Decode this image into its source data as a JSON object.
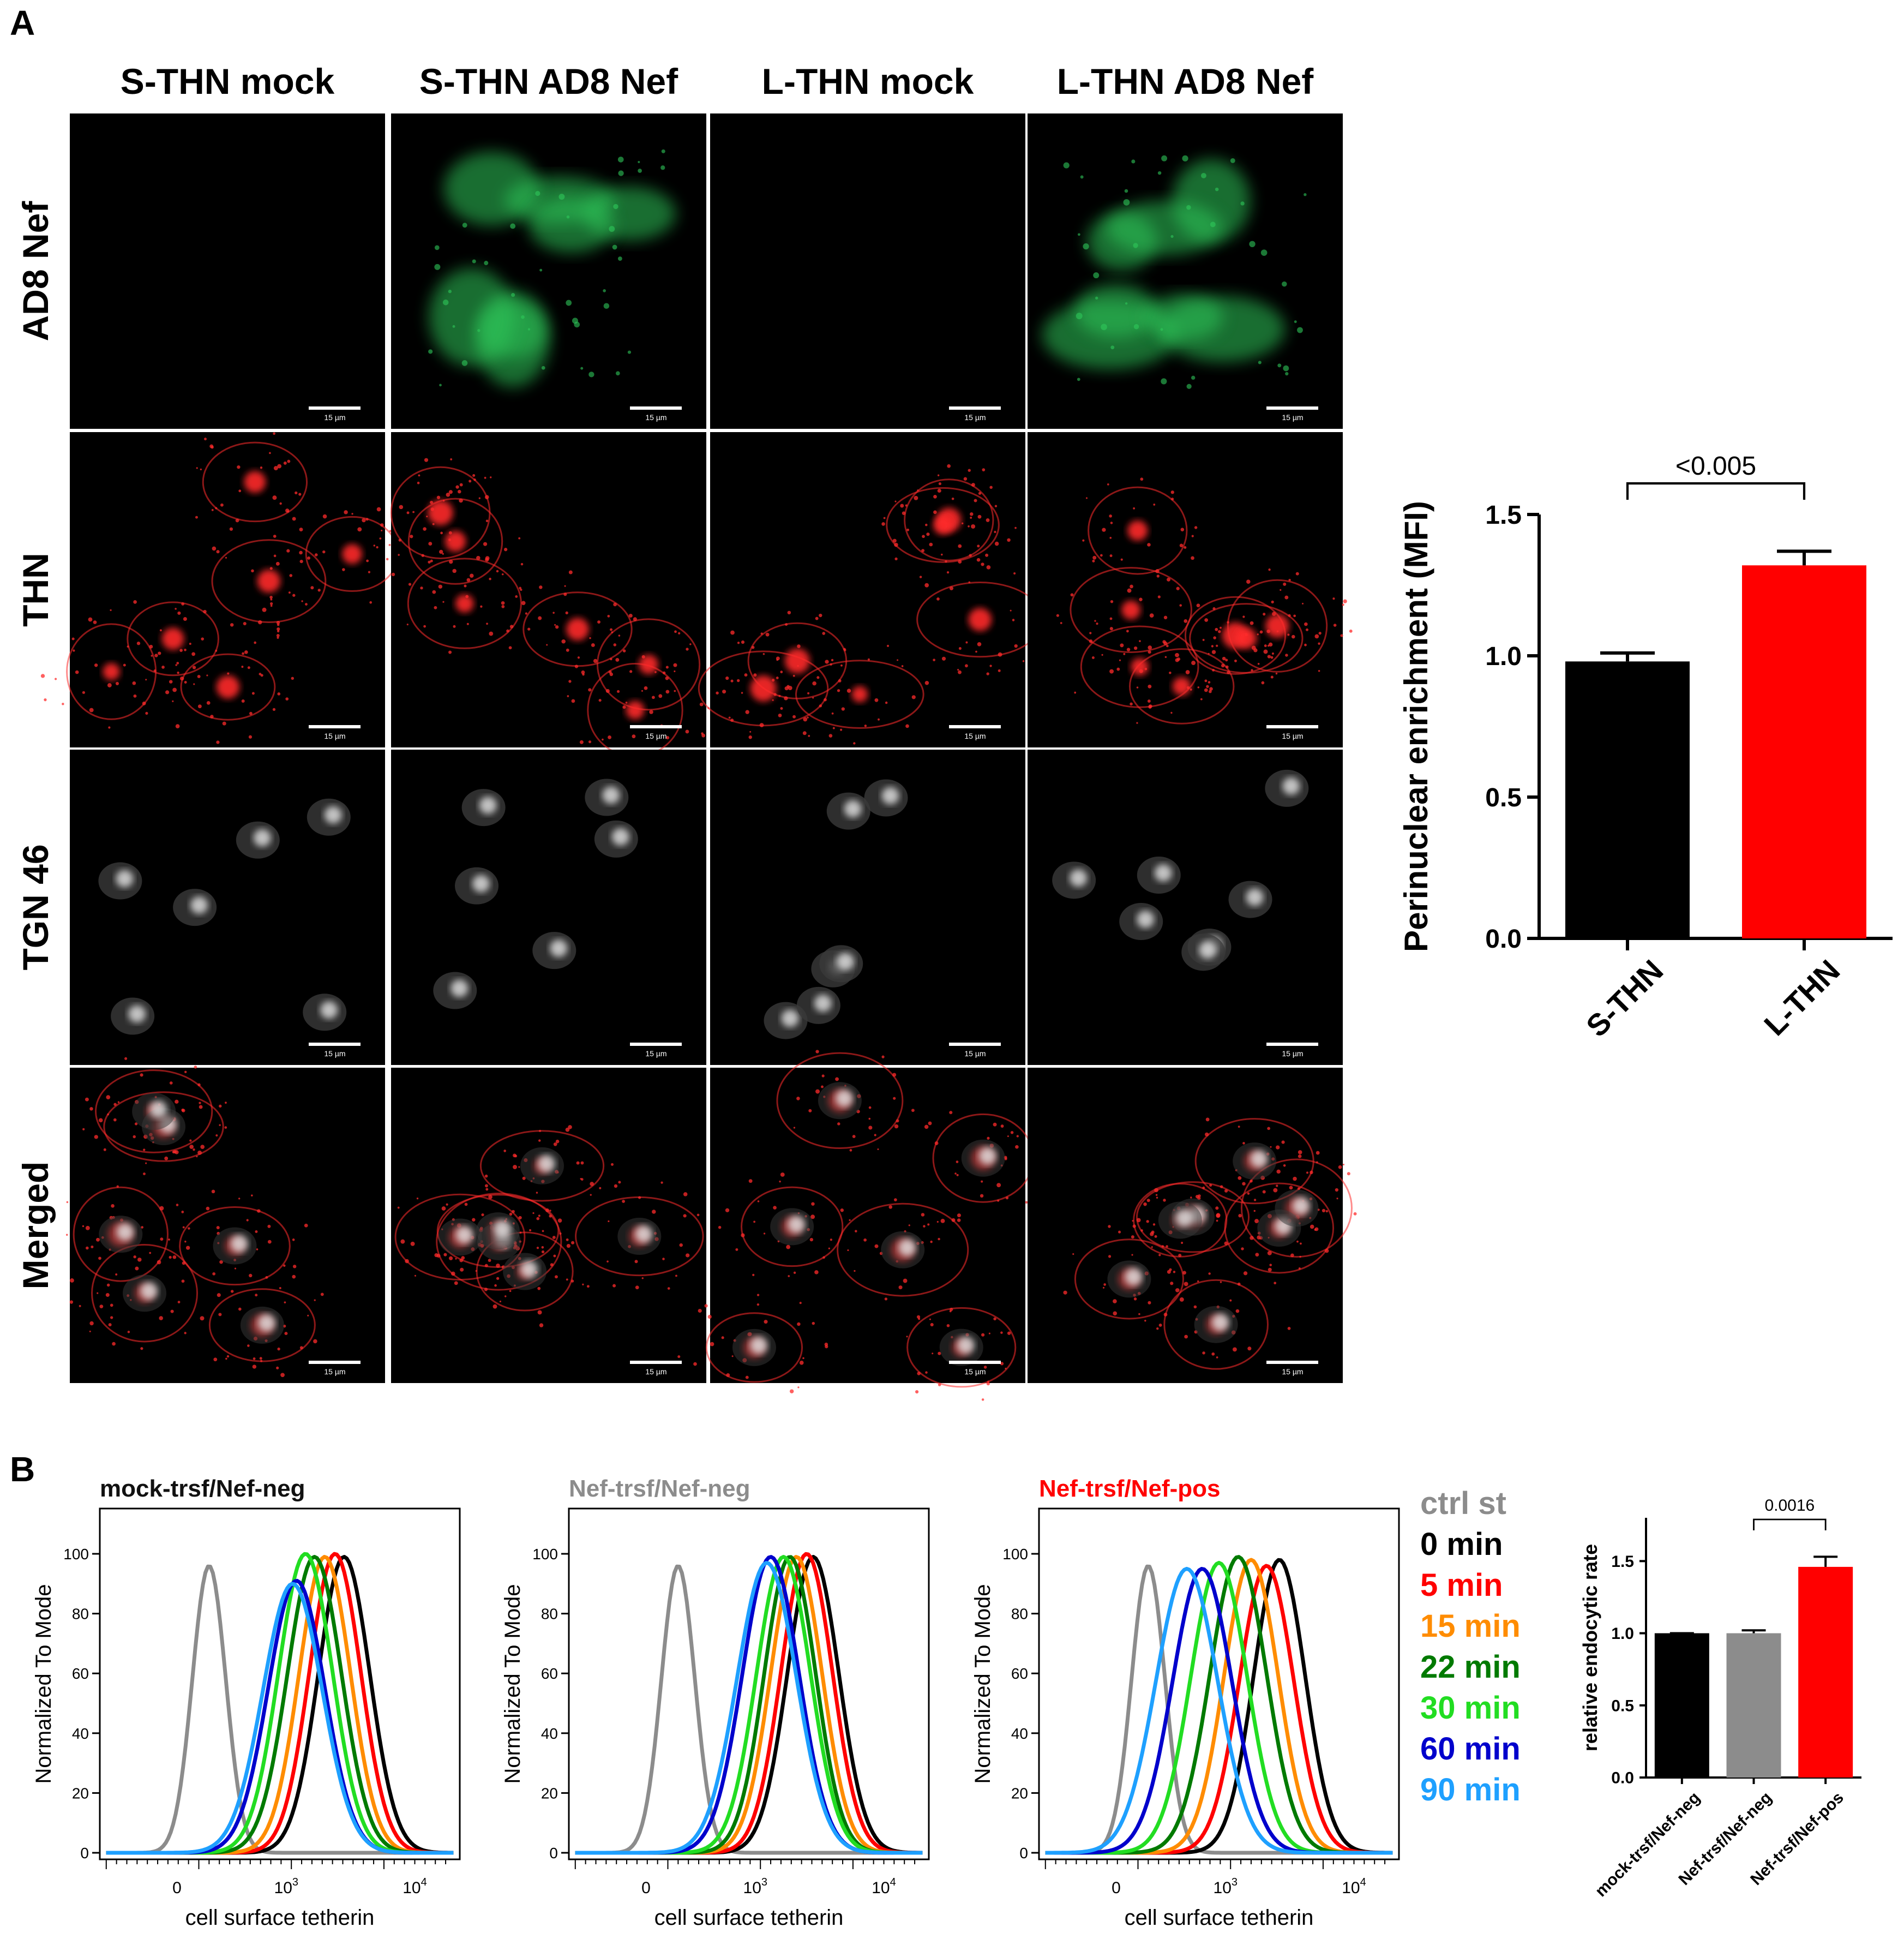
{
  "panel_a": {
    "label": "A",
    "columns": [
      "S-THN mock",
      "S-THN AD8 Nef",
      "L-THN mock",
      "L-THN AD8 Nef"
    ],
    "rows": [
      "AD8 Nef",
      "THN",
      "TGN 46",
      "Merged"
    ],
    "scale_bar": "15 µm",
    "colors": {
      "green": "#2fc85a",
      "red": "#ff2b2b",
      "white": "#e6e6e6"
    }
  },
  "panel_b": {
    "label": "B",
    "titles": [
      {
        "text": "mock-trsf/Nef-neg",
        "color": "#111111"
      },
      {
        "text": "Nef-trsf/Nef-neg",
        "color": "#8c8c8c"
      },
      {
        "text": "Nef-trsf/Nef-pos",
        "color": "#ff0000"
      }
    ],
    "ylabel": "Normalized To Mode",
    "xlabel": "cell surface tetherin",
    "yticks": [
      "0",
      "20",
      "40",
      "60",
      "80",
      "100"
    ],
    "xticks": [
      {
        "base": "0",
        "exp": ""
      },
      {
        "base": "10",
        "exp": "3"
      },
      {
        "base": "10",
        "exp": "4"
      }
    ],
    "legend": [
      {
        "label": "ctrl st",
        "color": "#8c8c8c"
      },
      {
        "label": "0 min",
        "color": "#000000"
      },
      {
        "label": "5 min",
        "color": "#ff0000"
      },
      {
        "label": "15 min",
        "color": "#ff8c00"
      },
      {
        "label": "22 min",
        "color": "#007a00"
      },
      {
        "label": "30 min",
        "color": "#22dd22"
      },
      {
        "label": "60 min",
        "color": "#0000cc"
      },
      {
        "label": "90 min",
        "color": "#1ea0ff"
      }
    ]
  },
  "chart_data": [
    {
      "type": "bar",
      "categories": [
        "S-THN",
        "L-THN"
      ],
      "values": [
        0.98,
        1.32
      ],
      "errors": [
        0.03,
        0.05
      ],
      "colors": [
        "#000000",
        "#ff0000"
      ],
      "ylabel": "Perinuclear enrichment (MFI)",
      "ylim": [
        0,
        1.5
      ],
      "yticks": [
        "0.0",
        "0.5",
        "1.0",
        "1.5"
      ],
      "annotation": "<0.005"
    },
    {
      "type": "bar",
      "categories": [
        "mock-trsf/Nef-neg",
        "Nef-trsf/Nef-neg",
        "Nef-trsf/Nef-pos"
      ],
      "values": [
        1.0,
        1.0,
        1.46
      ],
      "errors": [
        0.0,
        0.02,
        0.07
      ],
      "colors": [
        "#000000",
        "#8c8c8c",
        "#ff0000"
      ],
      "ylabel": "relative endocytic rate",
      "ylim": [
        0,
        1.8
      ],
      "yticks": [
        "0.0",
        "0.5",
        "1.0",
        "1.5"
      ],
      "annotation": "0.0016"
    },
    {
      "type": "line",
      "title": "mock-trsf/Nef-neg",
      "note": "x = position on log-scale axis in decades (2 ≈ 10^2 ... 4 = 10^4), y = normalized to mode",
      "series": [
        {
          "name": "ctrl st",
          "peak_x": 2.4,
          "width": 0.13,
          "peak_y": 96
        },
        {
          "name": "0 min",
          "peak_x": 3.45,
          "width": 0.2,
          "peak_y": 99
        },
        {
          "name": "5 min",
          "peak_x": 3.38,
          "width": 0.2,
          "peak_y": 100
        },
        {
          "name": "15 min",
          "peak_x": 3.3,
          "width": 0.2,
          "peak_y": 99
        },
        {
          "name": "22 min",
          "peak_x": 3.22,
          "width": 0.21,
          "peak_y": 99
        },
        {
          "name": "30 min",
          "peak_x": 3.15,
          "width": 0.21,
          "peak_y": 100
        },
        {
          "name": "60 min",
          "peak_x": 3.08,
          "width": 0.22,
          "peak_y": 91
        },
        {
          "name": "90 min",
          "peak_x": 3.05,
          "width": 0.23,
          "peak_y": 90
        }
      ]
    },
    {
      "type": "line",
      "title": "Nef-trsf/Nef-neg",
      "series": [
        {
          "name": "ctrl st",
          "peak_x": 2.4,
          "width": 0.13,
          "peak_y": 96
        },
        {
          "name": "0 min",
          "peak_x": 3.45,
          "width": 0.2,
          "peak_y": 99
        },
        {
          "name": "5 min",
          "peak_x": 3.4,
          "width": 0.2,
          "peak_y": 100
        },
        {
          "name": "15 min",
          "peak_x": 3.32,
          "width": 0.2,
          "peak_y": 99
        },
        {
          "name": "22 min",
          "peak_x": 3.27,
          "width": 0.2,
          "peak_y": 99
        },
        {
          "name": "30 min",
          "peak_x": 3.22,
          "width": 0.21,
          "peak_y": 99
        },
        {
          "name": "60 min",
          "peak_x": 3.12,
          "width": 0.22,
          "peak_y": 99
        },
        {
          "name": "90 min",
          "peak_x": 3.09,
          "width": 0.23,
          "peak_y": 97
        }
      ]
    },
    {
      "type": "line",
      "title": "Nef-trsf/Nef-pos",
      "series": [
        {
          "name": "ctrl st",
          "peak_x": 2.4,
          "width": 0.13,
          "peak_y": 96
        },
        {
          "name": "0 min",
          "peak_x": 3.42,
          "width": 0.2,
          "peak_y": 98
        },
        {
          "name": "5 min",
          "peak_x": 3.32,
          "width": 0.21,
          "peak_y": 96
        },
        {
          "name": "15 min",
          "peak_x": 3.2,
          "width": 0.21,
          "peak_y": 98
        },
        {
          "name": "22 min",
          "peak_x": 3.1,
          "width": 0.22,
          "peak_y": 99
        },
        {
          "name": "30 min",
          "peak_x": 2.95,
          "width": 0.22,
          "peak_y": 97
        },
        {
          "name": "60 min",
          "peak_x": 2.82,
          "width": 0.23,
          "peak_y": 95
        },
        {
          "name": "90 min",
          "peak_x": 2.7,
          "width": 0.24,
          "peak_y": 95
        }
      ]
    }
  ]
}
